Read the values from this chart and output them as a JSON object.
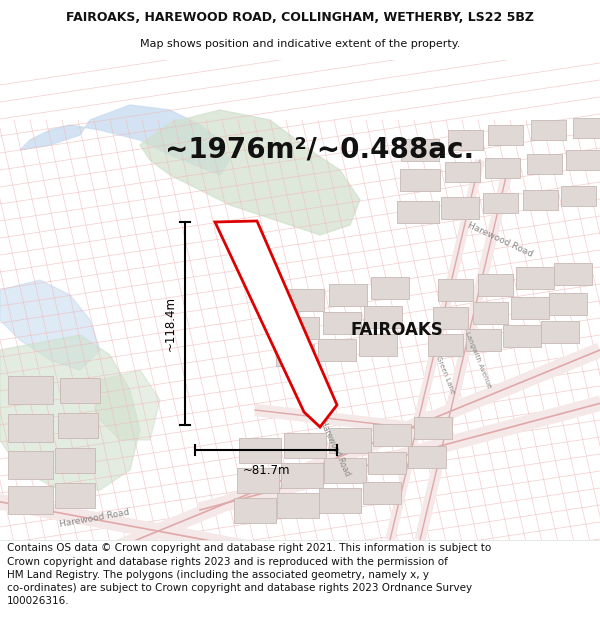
{
  "title_line1": "FAIROAKS, HAREWOOD ROAD, COLLINGHAM, WETHERBY, LS22 5BZ",
  "title_line2": "Map shows position and indicative extent of the property.",
  "area_text": "~1976m²/~0.488ac.",
  "property_label": "FAIROAKS",
  "dim_height": "~118.4m",
  "dim_width": "~81.7m",
  "footer_lines": [
    "Contains OS data © Crown copyright and database right 2021. This information is subject to",
    "Crown copyright and database rights 2023 and is reproduced with the permission of",
    "HM Land Registry. The polygons (including the associated geometry, namely x, y",
    "co-ordinates) are subject to Crown copyright and database rights 2023 Ordnance Survey",
    "100026316."
  ],
  "map_bg": "#f7f3ef",
  "open_space_color": "#ffffff",
  "water_color": "#c8ddf0",
  "green_color": "#d0e0cc",
  "building_color": "#e0d8d4",
  "building_edge": "#c8b8b4",
  "road_fill": "#f5e8e8",
  "road_edge": "#e0a8a8",
  "plot_line_color": "#f0b8b8",
  "property_fill": "#ffffff",
  "property_edge": "#dd0000",
  "dim_color": "#000000",
  "text_color": "#111111",
  "title_fontsize": 9.0,
  "subtitle_fontsize": 8.0,
  "area_fontsize": 20,
  "label_fontsize": 12,
  "footer_fontsize": 7.5,
  "road_label_color": "#888888",
  "road_label_size": 6.5
}
